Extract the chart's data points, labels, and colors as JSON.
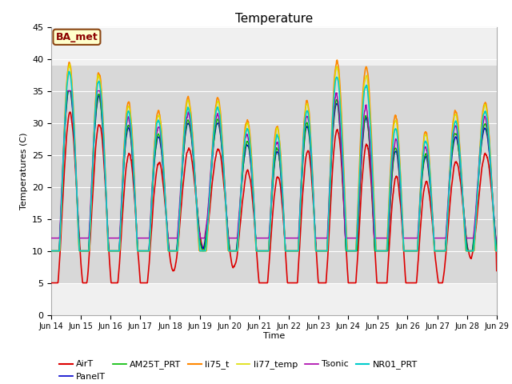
{
  "title": "Temperature",
  "ylabel": "Temperatures (C)",
  "xlabel": "Time",
  "annotation": "BA_met",
  "ylim": [
    0,
    45
  ],
  "xlim": [
    0,
    360
  ],
  "x_tick_labels": [
    "Jun 14",
    "Jun 15",
    "Jun 16",
    "Jun 17",
    "Jun 18",
    "Jun 19",
    "Jun 20",
    "Jun 21",
    "Jun 22",
    "Jun 23",
    "Jun 24",
    "Jun 25",
    "Jun 26",
    "Jun 27",
    "Jun 28",
    "Jun 29"
  ],
  "x_tick_positions": [
    0,
    24,
    48,
    72,
    96,
    120,
    144,
    168,
    192,
    216,
    240,
    264,
    288,
    312,
    336,
    360
  ],
  "gray_band_ymin": 5,
  "gray_band_ymax": 39,
  "series": {
    "AirT": {
      "color": "#dd0000",
      "lw": 1.2
    },
    "PanelT": {
      "color": "#0000cc",
      "lw": 1.0
    },
    "AM25T_PRT": {
      "color": "#00bb00",
      "lw": 1.0
    },
    "li75_t": {
      "color": "#ff8800",
      "lw": 1.2
    },
    "li77_temp": {
      "color": "#dddd00",
      "lw": 1.0
    },
    "Tsonic": {
      "color": "#aa00aa",
      "lw": 1.0
    },
    "NR01_PRT": {
      "color": "#00cccc",
      "lw": 1.2
    }
  },
  "facecolor": "#f0f0f0",
  "gridcolor": "#ffffff"
}
